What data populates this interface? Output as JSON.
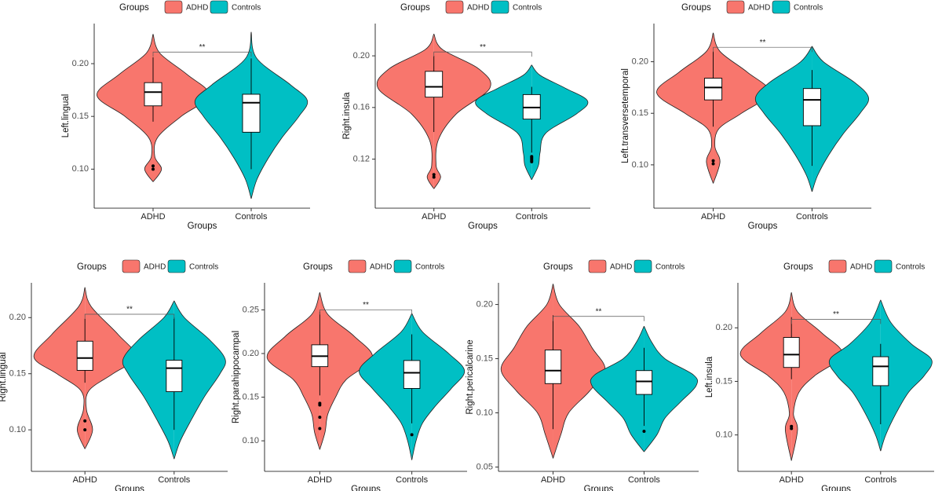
{
  "chart_data": [
    {
      "type": "violin",
      "legend_title": "Groups",
      "ylabel": "Left.lingual",
      "xlabel": "Groups",
      "categories": [
        "ADHD",
        "Controls"
      ],
      "ylim": [
        0.063,
        0.238
      ],
      "yticks": [
        {
          "value": 0.1,
          "label": "0.10"
        },
        0.15,
        {
          "value": 0.2,
          "label": "0.20"
        }
      ],
      "significance": {
        "label": "**",
        "value": 0.211
      },
      "series": [
        {
          "name": "ADHD",
          "color": "#F8766D",
          "density_y": [
            0.088,
            0.1,
            0.112,
            0.13,
            0.15,
            0.17,
            0.19,
            0.21,
            0.228
          ],
          "density": [
            0,
            0.15,
            0.03,
            0.08,
            0.5,
            1.0,
            0.6,
            0.12,
            0
          ],
          "box": {
            "whisker_low": 0.145,
            "q1": 0.16,
            "median": 0.173,
            "q3": 0.182,
            "whisker_high": 0.206
          },
          "outliers": [
            0.103,
            0.1
          ]
        },
        {
          "name": "Controls",
          "color": "#00BFC4",
          "density_y": [
            0.072,
            0.09,
            0.11,
            0.13,
            0.15,
            0.165,
            0.18,
            0.205,
            0.23
          ],
          "density": [
            0,
            0.1,
            0.3,
            0.55,
            0.85,
            1.0,
            0.7,
            0.1,
            0
          ],
          "box": {
            "whisker_low": 0.1,
            "q1": 0.135,
            "median": 0.163,
            "q3": 0.171,
            "whisker_high": 0.205
          },
          "outliers": []
        }
      ]
    },
    {
      "type": "violin",
      "legend_title": "Groups",
      "ylabel": "Right.insula",
      "xlabel": "Groups",
      "categories": [
        "ADHD",
        "Controls"
      ],
      "ylim": [
        0.082,
        0.225
      ],
      "yticks": [
        0.12,
        0.16,
        {
          "value": 0.2,
          "label": "0.20"
        }
      ],
      "significance": {
        "label": "**",
        "value": 0.203
      },
      "series": [
        {
          "name": "ADHD",
          "color": "#F8766D",
          "density_y": [
            0.097,
            0.106,
            0.115,
            0.135,
            0.155,
            0.175,
            0.19,
            0.205,
            0.217
          ],
          "density": [
            0,
            0.12,
            0.04,
            0.08,
            0.4,
            1.0,
            0.8,
            0.15,
            0
          ],
          "box": {
            "whisker_low": 0.141,
            "q1": 0.168,
            "median": 0.176,
            "q3": 0.188,
            "whisker_high": 0.2
          },
          "outliers": [
            0.108,
            0.106
          ]
        },
        {
          "name": "Controls",
          "color": "#00BFC4",
          "density_y": [
            0.104,
            0.115,
            0.125,
            0.14,
            0.155,
            0.165,
            0.175,
            0.185,
            0.193
          ],
          "density": [
            0,
            0.12,
            0.15,
            0.25,
            0.8,
            1.0,
            0.6,
            0.15,
            0
          ],
          "box": {
            "whisker_low": 0.125,
            "q1": 0.151,
            "median": 0.16,
            "q3": 0.17,
            "whisker_high": 0.176
          },
          "outliers": [
            0.122,
            0.121,
            0.12,
            0.119,
            0.118
          ]
        }
      ]
    },
    {
      "type": "violin",
      "legend_title": "Groups",
      "ylabel": "Left.transversetemporal",
      "xlabel": "Groups",
      "categories": [
        "ADHD",
        "Controls"
      ],
      "ylim": [
        0.058,
        0.237
      ],
      "yticks": [
        {
          "value": 0.1,
          "label": "0.10"
        },
        0.15,
        {
          "value": 0.2,
          "label": "0.20"
        }
      ],
      "significance": {
        "label": "**",
        "value": 0.214
      },
      "series": [
        {
          "name": "ADHD",
          "color": "#F8766D",
          "density_y": [
            0.082,
            0.103,
            0.118,
            0.135,
            0.15,
            0.17,
            0.19,
            0.21,
            0.228
          ],
          "density": [
            0,
            0.12,
            0.03,
            0.1,
            0.5,
            1.0,
            0.6,
            0.12,
            0
          ],
          "box": {
            "whisker_low": 0.137,
            "q1": 0.163,
            "median": 0.175,
            "q3": 0.184,
            "whisker_high": 0.21
          },
          "outliers": [
            0.104,
            0.101
          ]
        },
        {
          "name": "Controls",
          "color": "#00BFC4",
          "density_y": [
            0.074,
            0.09,
            0.11,
            0.13,
            0.15,
            0.165,
            0.18,
            0.2,
            0.215
          ],
          "density": [
            0,
            0.1,
            0.3,
            0.55,
            0.85,
            1.0,
            0.75,
            0.2,
            0
          ],
          "box": {
            "whisker_low": 0.099,
            "q1": 0.138,
            "median": 0.163,
            "q3": 0.174,
            "whisker_high": 0.192
          },
          "outliers": []
        }
      ]
    },
    {
      "type": "violin",
      "legend_title": "Groups",
      "ylabel": "Right.lingual",
      "xlabel": "Groups",
      "categories": [
        "ADHD",
        "Controls"
      ],
      "ylim": [
        0.063,
        0.231
      ],
      "yticks": [
        {
          "value": 0.1,
          "label": "0.10"
        },
        0.15,
        {
          "value": 0.2,
          "label": "0.20"
        }
      ],
      "significance": {
        "label": "**",
        "value": 0.203
      },
      "series": [
        {
          "name": "ADHD",
          "color": "#F8766D",
          "density_y": [
            0.083,
            0.1,
            0.118,
            0.135,
            0.15,
            0.165,
            0.185,
            0.21,
            0.227
          ],
          "density": [
            0,
            0.15,
            0.03,
            0.08,
            0.55,
            1.0,
            0.65,
            0.12,
            0
          ],
          "box": {
            "whisker_low": 0.142,
            "q1": 0.153,
            "median": 0.164,
            "q3": 0.179,
            "whisker_high": 0.199
          },
          "outliers": [
            0.108,
            0.1
          ]
        },
        {
          "name": "Controls",
          "color": "#00BFC4",
          "density_y": [
            0.074,
            0.09,
            0.11,
            0.13,
            0.15,
            0.163,
            0.18,
            0.2,
            0.215
          ],
          "density": [
            0,
            0.12,
            0.35,
            0.6,
            0.9,
            1.0,
            0.7,
            0.2,
            0
          ],
          "box": {
            "whisker_low": 0.1,
            "q1": 0.134,
            "median": 0.155,
            "q3": 0.162,
            "whisker_high": 0.2
          },
          "outliers": []
        }
      ]
    },
    {
      "type": "violin",
      "legend_title": "Groups",
      "ylabel": "Right.parahippocampal",
      "xlabel": "Groups",
      "categories": [
        "ADHD",
        "Controls"
      ],
      "ylim": [
        0.065,
        0.281
      ],
      "yticks": [
        {
          "value": 0.1,
          "label": "0.10"
        },
        0.15,
        {
          "value": 0.2,
          "label": "0.20"
        },
        0.25
      ],
      "significance": {
        "label": "**",
        "value": 0.25
      },
      "series": [
        {
          "name": "ADHD",
          "color": "#F8766D",
          "density_y": [
            0.09,
            0.11,
            0.13,
            0.15,
            0.17,
            0.195,
            0.22,
            0.245,
            0.27
          ],
          "density": [
            0,
            0.1,
            0.15,
            0.3,
            0.5,
            1.0,
            0.65,
            0.15,
            0
          ],
          "box": {
            "whisker_low": 0.152,
            "q1": 0.185,
            "median": 0.197,
            "q3": 0.21,
            "whisker_high": 0.248
          },
          "outliers": [
            0.143,
            0.141,
            0.127,
            0.114
          ]
        },
        {
          "name": "Controls",
          "color": "#00BFC4",
          "density_y": [
            0.078,
            0.1,
            0.12,
            0.14,
            0.16,
            0.18,
            0.2,
            0.225,
            0.246
          ],
          "density": [
            0,
            0.08,
            0.2,
            0.45,
            0.75,
            1.0,
            0.7,
            0.2,
            0
          ],
          "box": {
            "whisker_low": 0.12,
            "q1": 0.16,
            "median": 0.178,
            "q3": 0.192,
            "whisker_high": 0.222
          },
          "outliers": [
            0.107
          ]
        }
      ]
    },
    {
      "type": "violin",
      "legend_title": "Groups",
      "ylabel": "Right.pericalcarine",
      "xlabel": "Groups",
      "categories": [
        "ADHD",
        "Controls"
      ],
      "ylim": [
        0.046,
        0.22
      ],
      "yticks": [
        0.05,
        {
          "value": 0.1,
          "label": "0.10"
        },
        0.15,
        {
          "value": 0.2,
          "label": "0.20"
        }
      ],
      "significance": {
        "label": "**",
        "value": 0.189
      },
      "series": [
        {
          "name": "ADHD",
          "color": "#F8766D",
          "density_y": [
            0.058,
            0.08,
            0.1,
            0.12,
            0.14,
            0.16,
            0.18,
            0.2,
            0.219
          ],
          "density": [
            0,
            0.15,
            0.3,
            0.7,
            1.0,
            0.75,
            0.5,
            0.12,
            0
          ],
          "box": {
            "whisker_low": 0.085,
            "q1": 0.127,
            "median": 0.139,
            "q3": 0.158,
            "whisker_high": 0.19
          },
          "outliers": []
        },
        {
          "name": "Controls",
          "color": "#00BFC4",
          "density_y": [
            0.064,
            0.08,
            0.095,
            0.11,
            0.125,
            0.135,
            0.15,
            0.165,
            0.18
          ],
          "density": [
            0,
            0.25,
            0.4,
            0.7,
            1.0,
            0.95,
            0.4,
            0.15,
            0
          ],
          "box": {
            "whisker_low": 0.088,
            "q1": 0.117,
            "median": 0.129,
            "q3": 0.139,
            "whisker_high": 0.16
          },
          "outliers": [
            0.083
          ]
        }
      ]
    },
    {
      "type": "violin",
      "legend_title": "Groups",
      "ylabel": "Left.insula",
      "xlabel": "Groups",
      "categories": [
        "ADHD",
        "Controls"
      ],
      "ylim": [
        0.066,
        0.242
      ],
      "yticks": [
        {
          "value": 0.1,
          "label": "0.10"
        },
        0.15,
        {
          "value": 0.2,
          "label": "0.20"
        }
      ],
      "significance": {
        "label": "**",
        "value": 0.208
      },
      "series": [
        {
          "name": "ADHD",
          "color": "#F8766D",
          "density_y": [
            0.076,
            0.105,
            0.12,
            0.14,
            0.155,
            0.175,
            0.195,
            0.215,
            0.233
          ],
          "density": [
            0,
            0.12,
            0.04,
            0.15,
            0.45,
            1.0,
            0.6,
            0.12,
            0
          ],
          "box": {
            "whisker_low": 0.152,
            "q1": 0.163,
            "median": 0.175,
            "q3": 0.191,
            "whisker_high": 0.21
          },
          "outliers": [
            0.108,
            0.106
          ]
        },
        {
          "name": "Controls",
          "color": "#00BFC4",
          "density_y": [
            0.085,
            0.1,
            0.12,
            0.14,
            0.155,
            0.17,
            0.185,
            0.205,
            0.226
          ],
          "density": [
            0,
            0.1,
            0.3,
            0.55,
            0.85,
            1.0,
            0.6,
            0.2,
            0
          ],
          "box": {
            "whisker_low": 0.11,
            "q1": 0.146,
            "median": 0.164,
            "q3": 0.173,
            "whisker_high": 0.185
          },
          "outliers": []
        }
      ]
    }
  ]
}
